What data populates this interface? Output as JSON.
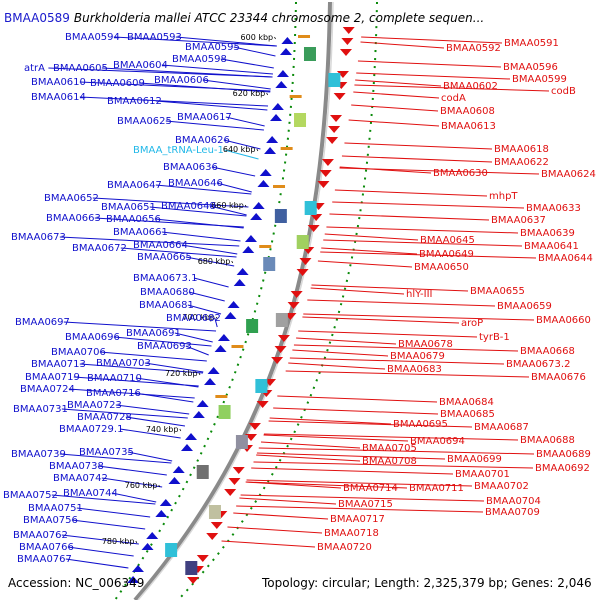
{
  "header": {
    "accession_label": "BMAA0589",
    "title": "Burkholderia mallei ATCC 23344 chromosome 2, complete sequen..."
  },
  "footer": {
    "accession": "Accession: NC_006349",
    "summary": "Topology: circular; Length: 2,325,379 bp; Genes: 2,046"
  },
  "colors": {
    "minus_strand": "#1010cc",
    "plus_strand": "#e01010",
    "rna": "#22b8e8",
    "backbone": "#888888",
    "gc_dots": "#0a8a0a",
    "cog_marker": "#e08c1a"
  },
  "scale_ticks": [
    {
      "kbp": 600,
      "label": "600 kbp"
    },
    {
      "kbp": 620,
      "label": "620 kbp"
    },
    {
      "kbp": 640,
      "label": "640 kbp"
    },
    {
      "kbp": 660,
      "label": "660 kbp"
    },
    {
      "kbp": 680,
      "label": "680 kbp"
    },
    {
      "kbp": 700,
      "label": "700 kbp"
    },
    {
      "kbp": 720,
      "label": "720 kbp"
    },
    {
      "kbp": 740,
      "label": "740 kbp"
    },
    {
      "kbp": 760,
      "label": "760 kbp"
    },
    {
      "kbp": 780,
      "label": "780 kbp"
    }
  ],
  "left_genes": [
    {
      "name": "BMAA0594",
      "type": "gene"
    },
    {
      "name": "BMAA0593",
      "type": "gene"
    },
    {
      "name": "BMAA0595",
      "type": "gene"
    },
    {
      "name": "BMAA0598",
      "type": "gene"
    },
    {
      "name": "atrA",
      "type": "gene"
    },
    {
      "name": "BMAA0605",
      "type": "gene"
    },
    {
      "name": "BMAA0604",
      "type": "gene"
    },
    {
      "name": "BMAA0610",
      "type": "gene"
    },
    {
      "name": "BMAA0609",
      "type": "gene"
    },
    {
      "name": "BMAA0606",
      "type": "gene"
    },
    {
      "name": "BMAA0614",
      "type": "gene"
    },
    {
      "name": "BMAA0612",
      "type": "gene"
    },
    {
      "name": "BMAA0625",
      "type": "gene"
    },
    {
      "name": "BMAA0617",
      "type": "gene"
    },
    {
      "name": "BMAA0626",
      "type": "gene"
    },
    {
      "name": "BMAA_tRNA-Leu-1",
      "type": "rna"
    },
    {
      "name": "BMAA0636",
      "type": "gene"
    },
    {
      "name": "BMAA0647",
      "type": "gene"
    },
    {
      "name": "BMAA0646",
      "type": "gene"
    },
    {
      "name": "BMAA0652",
      "type": "gene"
    },
    {
      "name": "BMAA0651",
      "type": "gene"
    },
    {
      "name": "BMAA0648",
      "type": "gene"
    },
    {
      "name": "BMAA0663",
      "type": "gene"
    },
    {
      "name": "BMAA0656",
      "type": "gene"
    },
    {
      "name": "BMAA0661",
      "type": "gene"
    },
    {
      "name": "BMAA0673",
      "type": "gene"
    },
    {
      "name": "BMAA0672",
      "type": "gene"
    },
    {
      "name": "BMAA0664",
      "type": "gene"
    },
    {
      "name": "BMAA0665",
      "type": "gene"
    },
    {
      "name": "BMAA0673.1",
      "type": "gene"
    },
    {
      "name": "BMAA0680",
      "type": "gene"
    },
    {
      "name": "BMAA0681",
      "type": "gene"
    },
    {
      "name": "BMAA0682",
      "type": "gene"
    },
    {
      "name": "BMAA0697",
      "type": "gene"
    },
    {
      "name": "BMAA0691",
      "type": "gene"
    },
    {
      "name": "BMAA0696",
      "type": "gene"
    },
    {
      "name": "BMAA0693",
      "type": "gene"
    },
    {
      "name": "BMAA0706",
      "type": "gene"
    },
    {
      "name": "BMAA0713",
      "type": "gene"
    },
    {
      "name": "BMAA0703",
      "type": "gene"
    },
    {
      "name": "BMAA0719",
      "type": "gene"
    },
    {
      "name": "BMAA0710",
      "type": "gene"
    },
    {
      "name": "BMAA0724",
      "type": "gene"
    },
    {
      "name": "BMAA0716",
      "type": "gene"
    },
    {
      "name": "BMAA0731",
      "type": "gene"
    },
    {
      "name": "BMAA0723",
      "type": "gene"
    },
    {
      "name": "BMAA0728",
      "type": "gene"
    },
    {
      "name": "BMAA0729.1",
      "type": "gene"
    },
    {
      "name": "BMAA0739",
      "type": "gene"
    },
    {
      "name": "BMAA0735",
      "type": "gene"
    },
    {
      "name": "BMAA0738",
      "type": "gene"
    },
    {
      "name": "BMAA0742",
      "type": "gene"
    },
    {
      "name": "BMAA0752",
      "type": "gene"
    },
    {
      "name": "BMAA0744",
      "type": "gene"
    },
    {
      "name": "BMAA0751",
      "type": "gene"
    },
    {
      "name": "BMAA0756",
      "type": "gene"
    },
    {
      "name": "BMAA0762",
      "type": "gene"
    },
    {
      "name": "BMAA0766",
      "type": "gene"
    },
    {
      "name": "BMAA0767",
      "type": "gene"
    }
  ],
  "right_genes": [
    {
      "name": "BMAA0591"
    },
    {
      "name": "BMAA0592"
    },
    {
      "name": "BMAA0596"
    },
    {
      "name": "BMAA0599"
    },
    {
      "name": "BMAA0602"
    },
    {
      "name": "codB"
    },
    {
      "name": "codA"
    },
    {
      "name": "BMAA0608"
    },
    {
      "name": "BMAA0613"
    },
    {
      "name": "BMAA0618"
    },
    {
      "name": "BMAA0622"
    },
    {
      "name": "BMAA0630"
    },
    {
      "name": "BMAA0624"
    },
    {
      "name": "mhpT"
    },
    {
      "name": "BMAA0633"
    },
    {
      "name": "BMAA0637"
    },
    {
      "name": "BMAA0639"
    },
    {
      "name": "BMAA0645"
    },
    {
      "name": "BMAA0641"
    },
    {
      "name": "BMAA0649"
    },
    {
      "name": "BMAA0644"
    },
    {
      "name": "BMAA0650"
    },
    {
      "name": "hlY-III"
    },
    {
      "name": "BMAA0655"
    },
    {
      "name": "BMAA0659"
    },
    {
      "name": "aroP"
    },
    {
      "name": "BMAA0660"
    },
    {
      "name": "tyrB-1"
    },
    {
      "name": "BMAA0678"
    },
    {
      "name": "BMAA0668"
    },
    {
      "name": "BMAA0679"
    },
    {
      "name": "BMAA0673.2"
    },
    {
      "name": "BMAA0683"
    },
    {
      "name": "BMAA0676"
    },
    {
      "name": "BMAA0684"
    },
    {
      "name": "BMAA0685"
    },
    {
      "name": "BMAA0687"
    },
    {
      "name": "BMAA0695"
    },
    {
      "name": "BMAA0688"
    },
    {
      "name": "BMAA0694"
    },
    {
      "name": "BMAA0689"
    },
    {
      "name": "BMAA0705"
    },
    {
      "name": "BMAA0699"
    },
    {
      "name": "BMAA0692"
    },
    {
      "name": "BMAA0701"
    },
    {
      "name": "BMAA0708"
    },
    {
      "name": "BMAA0702"
    },
    {
      "name": "BMAA0714"
    },
    {
      "name": "BMAA0711"
    },
    {
      "name": "BMAA0704"
    },
    {
      "name": "BMAA0715"
    },
    {
      "name": "BMAA0709"
    },
    {
      "name": "BMAA0717"
    },
    {
      "name": "BMAA0718"
    },
    {
      "name": "BMAA0720"
    }
  ]
}
